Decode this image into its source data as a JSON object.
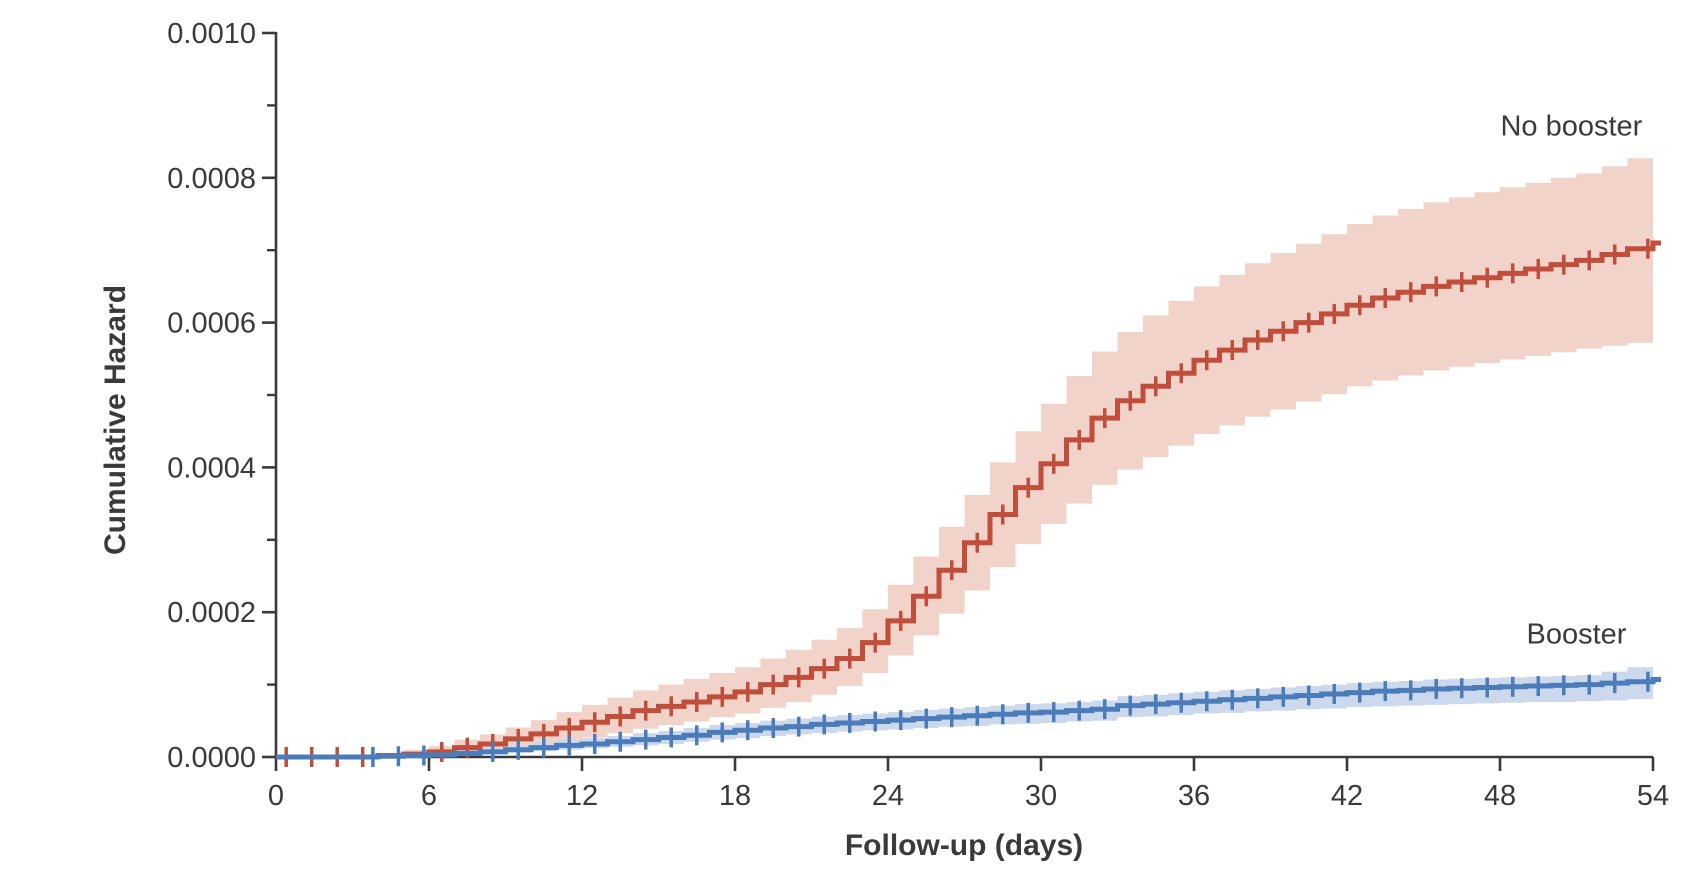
{
  "figure": {
    "y_axis_title": "Cumulative Hazard",
    "x_axis_title": "Follow-up (days)",
    "background_color": "#ffffff",
    "axis_color": "#3a3a3a",
    "text_color": "#3a3a3a"
  },
  "chart_data": {
    "type": "line",
    "subtype": "step-cumulative-hazard-with-confidence-bands",
    "title": "",
    "xlabel": "Follow-up (days)",
    "ylabel": "Cumulative Hazard",
    "xlim": [
      0,
      54
    ],
    "ylim": [
      0,
      0.001
    ],
    "grid": false,
    "legend_position": "curve-end-labels",
    "x_ticks": [
      0,
      6,
      12,
      18,
      24,
      30,
      36,
      42,
      48,
      54
    ],
    "x_tick_labels": [
      "0",
      "6",
      "12",
      "18",
      "24",
      "30",
      "36",
      "42",
      "48",
      "54"
    ],
    "y_ticks": [
      0.0,
      0.0002,
      0.0004,
      0.0006,
      0.0008,
      0.001
    ],
    "y_tick_labels": [
      "0.0000",
      "0.0002",
      "0.0004",
      "0.0006",
      "0.0008",
      "0.0010"
    ],
    "y_minor_ticks": [
      0.0001,
      0.0003,
      0.0005,
      0.0007,
      0.0009
    ],
    "days": [
      0,
      1,
      2,
      3,
      4,
      5,
      6,
      7,
      8,
      9,
      10,
      11,
      12,
      13,
      14,
      15,
      16,
      17,
      18,
      19,
      20,
      21,
      22,
      23,
      24,
      25,
      26,
      27,
      28,
      29,
      30,
      31,
      32,
      33,
      34,
      35,
      36,
      37,
      38,
      39,
      40,
      41,
      42,
      43,
      44,
      45,
      46,
      47,
      48,
      49,
      50,
      51,
      52,
      53,
      54
    ],
    "series": [
      {
        "name": "No booster",
        "line_color": "#c04e3a",
        "band_color": "#f2d3ca",
        "label_pos": {
          "day": 50.8,
          "value": 0.00087
        },
        "values": [
          0,
          0,
          0,
          0,
          2e-06,
          4e-06,
          7e-06,
          1.3e-05,
          1.8e-05,
          2.5e-05,
          3.2e-05,
          4e-05,
          4.8e-05,
          5.6e-05,
          6.4e-05,
          7e-05,
          7.6e-05,
          8.3e-05,
          9e-05,
          0.0001,
          0.00011,
          0.000122,
          0.000136,
          0.000158,
          0.000188,
          0.000222,
          0.000258,
          0.000296,
          0.000335,
          0.000372,
          0.000405,
          0.000438,
          0.000468,
          0.000492,
          0.000512,
          0.00053,
          0.000548,
          0.000562,
          0.000576,
          0.000588,
          0.0006,
          0.000612,
          0.000624,
          0.000634,
          0.000642,
          0.00065,
          0.000656,
          0.000662,
          0.000668,
          0.000674,
          0.00068,
          0.000686,
          0.000694,
          0.000702,
          0.00071
        ],
        "ci_lower": [
          0,
          0,
          0,
          0,
          0,
          1e-06,
          2e-06,
          5e-06,
          8e-06,
          1.1e-05,
          1.6e-05,
          2.1e-05,
          2.7e-05,
          3.3e-05,
          3.9e-05,
          4.4e-05,
          4.9e-05,
          5.5e-05,
          6e-05,
          6.8e-05,
          7.6e-05,
          8.6e-05,
          9.8e-05,
          0.000116,
          0.00014,
          0.000168,
          0.000198,
          0.00023,
          0.000262,
          0.000294,
          0.000322,
          0.00035,
          0.000376,
          0.000397,
          0.000414,
          0.00043,
          0.000446,
          0.000458,
          0.00047,
          0.00048,
          0.000491,
          0.000501,
          0.000512,
          0.00052,
          0.000527,
          0.000534,
          0.000539,
          0.000544,
          0.000549,
          0.000554,
          0.000559,
          0.000564,
          0.000568,
          0.000572,
          0.000576
        ],
        "ci_upper": [
          0,
          0,
          0,
          0,
          5e-06,
          1e-05,
          1.5e-05,
          2.4e-05,
          3.1e-05,
          4.1e-05,
          5.1e-05,
          6.2e-05,
          7.2e-05,
          8.2e-05,
          9.2e-05,
          0.0001,
          0.000108,
          0.000116,
          0.000124,
          0.000136,
          0.000148,
          0.000162,
          0.000178,
          0.000204,
          0.000238,
          0.000277,
          0.000318,
          0.000362,
          0.000407,
          0.00045,
          0.000488,
          0.000526,
          0.00056,
          0.000587,
          0.00061,
          0.00063,
          0.00065,
          0.000666,
          0.000682,
          0.000696,
          0.000709,
          0.000722,
          0.000736,
          0.000748,
          0.000757,
          0.000766,
          0.000773,
          0.00078,
          0.000787,
          0.000793,
          0.0008,
          0.000806,
          0.000816,
          0.000827,
          0.000838
        ],
        "censor_days": [
          0.4,
          1.4,
          2.4,
          3.4,
          6.5,
          7.5,
          8.5,
          9.5,
          10.5,
          11.5,
          12.5,
          13.5,
          14.5,
          15.5,
          16.5,
          17.5,
          18.5,
          19.5,
          20.5,
          21.5,
          22.5,
          23.5,
          24.5,
          25.5,
          26.5,
          27.5,
          28.5,
          29.5,
          30.5,
          31.5,
          32.5,
          33.5,
          34.5,
          35.5,
          36.5,
          37.5,
          38.5,
          39.5,
          40.5,
          41.5,
          42.5,
          43.5,
          44.5,
          45.5,
          46.5,
          47.5,
          48.5,
          49.5,
          50.5,
          51.5,
          52.5,
          53.8
        ]
      },
      {
        "name": "Booster",
        "line_color": "#4b7cba",
        "band_color": "#ccd8eb",
        "label_pos": {
          "day": 51.0,
          "value": 0.000168
        },
        "values": [
          0,
          0,
          0,
          0,
          1e-06,
          2e-06,
          3e-06,
          5e-06,
          7e-06,
          1e-05,
          1.3e-05,
          1.6e-05,
          1.8e-05,
          2.1e-05,
          2.4e-05,
          2.7e-05,
          3e-05,
          3.4e-05,
          3.7e-05,
          4e-05,
          4.2e-05,
          4.5e-05,
          4.7e-05,
          4.9e-05,
          5.1e-05,
          5.3e-05,
          5.5e-05,
          5.7e-05,
          5.9e-05,
          6.1e-05,
          6.2e-05,
          6.4e-05,
          6.6e-05,
          7.1e-05,
          7.3e-05,
          7.5e-05,
          7.7e-05,
          7.9e-05,
          8.1e-05,
          8.3e-05,
          8.5e-05,
          8.7e-05,
          8.9e-05,
          9.1e-05,
          9.2e-05,
          9.4e-05,
          9.5e-05,
          9.6e-05,
          9.7e-05,
          9.8e-05,
          9.9e-05,
          0.0001,
          0.000102,
          0.000104,
          0.000107
        ],
        "ci_lower": [
          0,
          0,
          0,
          0,
          0,
          0,
          1e-06,
          2e-06,
          4e-06,
          6e-06,
          8e-06,
          1e-05,
          1.2e-05,
          1.4e-05,
          1.6e-05,
          1.8e-05,
          2.1e-05,
          2.4e-05,
          2.6e-05,
          2.9e-05,
          3.1e-05,
          3.3e-05,
          3.5e-05,
          3.7e-05,
          3.8e-05,
          4e-05,
          4.2e-05,
          4.3e-05,
          4.5e-05,
          4.6e-05,
          4.7e-05,
          4.9e-05,
          5e-05,
          5.5e-05,
          5.6e-05,
          5.8e-05,
          6e-05,
          6.1e-05,
          6.3e-05,
          6.4e-05,
          6.6e-05,
          6.7e-05,
          6.9e-05,
          7e-05,
          7.1e-05,
          7.2e-05,
          7.3e-05,
          7.4e-05,
          7.5e-05,
          7.6e-05,
          7.6e-05,
          7.7e-05,
          7.8e-05,
          8e-05,
          8.2e-05
        ],
        "ci_upper": [
          0,
          0,
          0,
          0,
          3e-06,
          5e-06,
          7e-06,
          1e-05,
          1.3e-05,
          1.6e-05,
          2e-05,
          2.3e-05,
          2.6e-05,
          2.9e-05,
          3.3e-05,
          3.6e-05,
          4e-05,
          4.4e-05,
          4.7e-05,
          5e-05,
          5.3e-05,
          5.6e-05,
          5.8e-05,
          6e-05,
          6.2e-05,
          6.5e-05,
          6.7e-05,
          6.9e-05,
          7.1e-05,
          7.3e-05,
          7.4e-05,
          7.6e-05,
          7.8e-05,
          8.4e-05,
          8.6e-05,
          8.8e-05,
          9e-05,
          9.2e-05,
          9.4e-05,
          9.6e-05,
          9.8e-05,
          0.0001,
          0.000102,
          0.000104,
          0.000105,
          0.000107,
          0.000108,
          0.000109,
          0.00011,
          0.000111,
          0.000112,
          0.000113,
          0.000118,
          0.000124,
          0.000131
        ],
        "censor_days": [
          3.8,
          4.8,
          5.8,
          8.5,
          9.5,
          10.5,
          11.5,
          12.5,
          13.5,
          14.5,
          15.5,
          16.5,
          17.5,
          18.5,
          19.5,
          20.5,
          21.5,
          22.5,
          23.5,
          24.5,
          25.5,
          26.5,
          27.5,
          28.5,
          29.5,
          30.5,
          31.5,
          32.5,
          33.5,
          34.5,
          35.5,
          36.5,
          37.5,
          38.5,
          39.5,
          40.5,
          41.5,
          42.5,
          43.5,
          44.5,
          45.5,
          46.5,
          47.5,
          48.5,
          49.5,
          50.5,
          51.5,
          52.5,
          53.8
        ]
      }
    ]
  }
}
